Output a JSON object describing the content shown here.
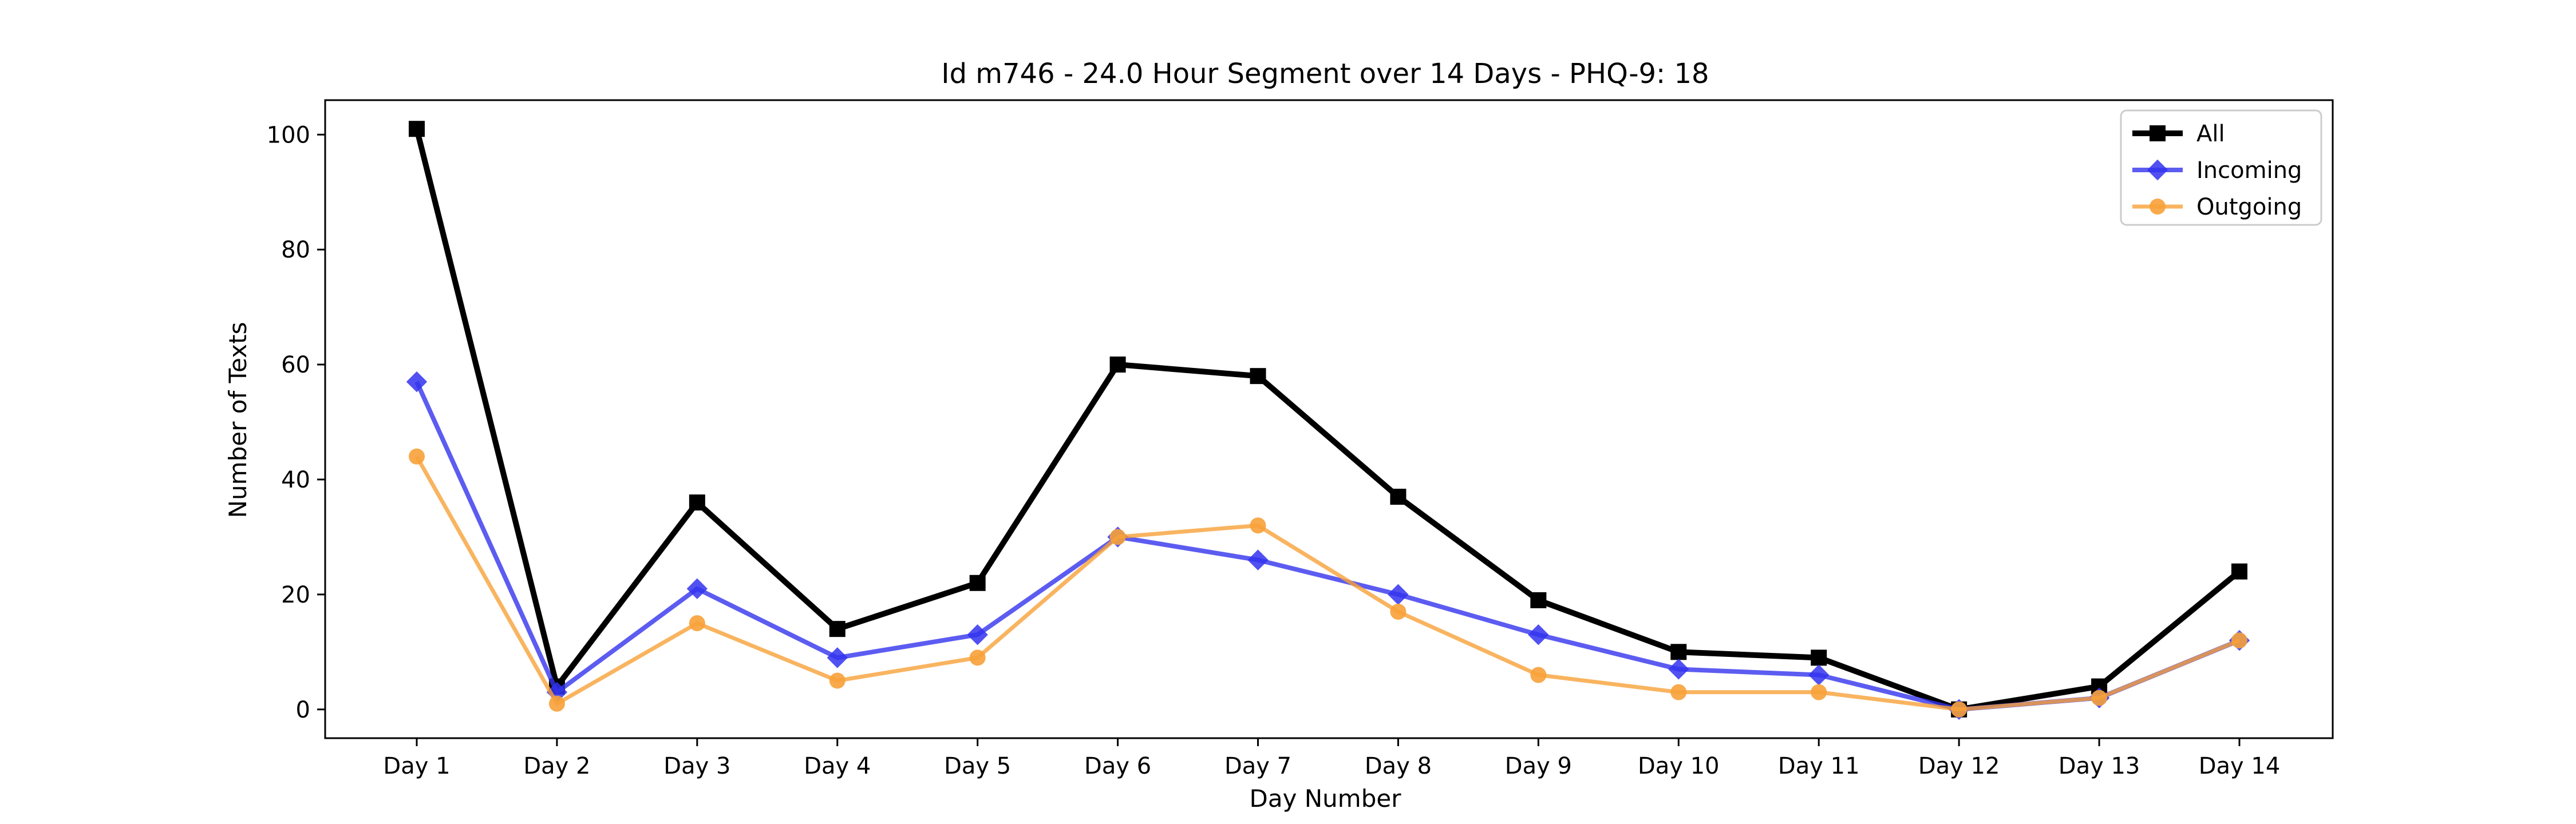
{
  "chart_data": {
    "type": "line",
    "title": "Id m746 - 24.0 Hour Segment over 14 Days - PHQ-9: 18",
    "xlabel": "Day Number",
    "ylabel": "Number of Texts",
    "categories": [
      "Day 1",
      "Day 2",
      "Day 3",
      "Day 4",
      "Day 5",
      "Day 6",
      "Day 7",
      "Day 8",
      "Day 9",
      "Day 10",
      "Day 11",
      "Day 12",
      "Day 13",
      "Day 14"
    ],
    "ylim": [
      -5,
      106
    ],
    "yticks": [
      0,
      20,
      40,
      60,
      80,
      100
    ],
    "grid": false,
    "legend_position": "top-right",
    "series": [
      {
        "name": "All",
        "color": "#000000",
        "marker": "square",
        "values": [
          101,
          4,
          36,
          14,
          22,
          60,
          58,
          37,
          19,
          10,
          9,
          0,
          4,
          24
        ]
      },
      {
        "name": "Incoming",
        "color": "#3333ee",
        "marker": "diamond",
        "values": [
          57,
          3,
          21,
          9,
          13,
          30,
          26,
          20,
          13,
          7,
          6,
          0,
          2,
          12
        ]
      },
      {
        "name": "Outgoing",
        "color": "#f7a138",
        "marker": "circle",
        "values": [
          44,
          1,
          15,
          5,
          9,
          30,
          32,
          17,
          6,
          3,
          3,
          0,
          2,
          12
        ]
      }
    ]
  }
}
